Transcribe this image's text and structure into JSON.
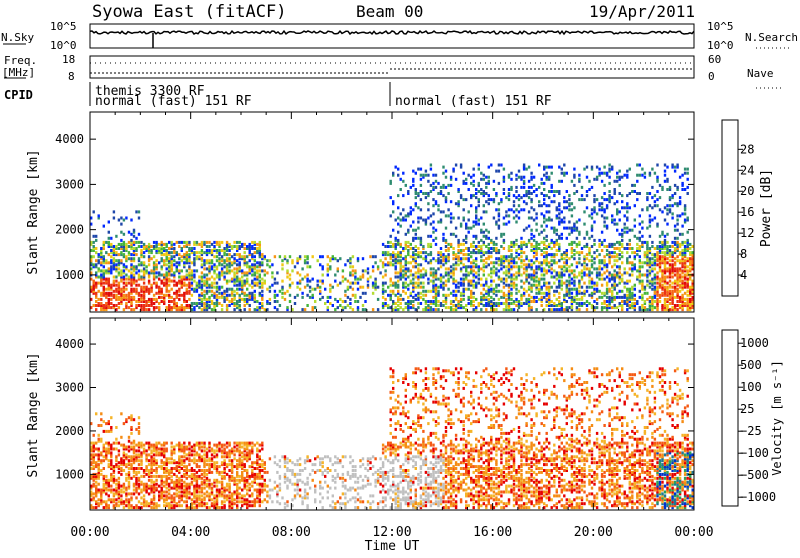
{
  "header": {
    "station": "Syowa East (fitACF)",
    "beam": "Beam 00",
    "date": "19/Apr/2011"
  },
  "summary": {
    "nsky_label": "N.Sky",
    "nsky_top": "10^5",
    "nsky_bottom": "10^0",
    "nsearch_label": "N.Search",
    "nsearch_top": "10^5",
    "nsearch_bottom": "10^0",
    "freq_label_1": "Freq.",
    "freq_label_2": "[MHz]",
    "freq_top": "18",
    "freq_bottom": "8",
    "nave_label": "Nave",
    "nave_top": "60",
    "nave_bottom": "0",
    "cpid_label": "CPID"
  },
  "cpid_entries": [
    {
      "text": "themis 3300 RF"
    },
    {
      "text": "normal (fast) 151 RF"
    },
    {
      "text": "normal (fast) 151 RF"
    }
  ],
  "chart_data": [
    {
      "type": "heatmap",
      "name": "power-panel",
      "ylabel": "Slant Range [km]",
      "xlabel": "Time UT",
      "x_ticks": [
        "00:00",
        "04:00",
        "08:00",
        "12:00",
        "16:00",
        "20:00",
        "00:00"
      ],
      "x_range_hours": [
        0,
        24
      ],
      "y_ticks": [
        1000,
        2000,
        3000,
        4000
      ],
      "ylim": [
        180,
        4600
      ],
      "colorbar": {
        "label": "Power [dB]",
        "ticks": [
          "4",
          "8",
          "12",
          "16",
          "20",
          "24",
          "28"
        ],
        "colors": [
          "#0028ff",
          "#1e46aa",
          "#2f8c70",
          "#46b43c",
          "#b4dc32",
          "#f0c814",
          "#f59614",
          "#f56414",
          "#eb3214",
          "#e10a0a"
        ]
      },
      "echo_regions": [
        {
          "t0": 0.0,
          "t1": 6.5,
          "r0": 300,
          "r1": 1500,
          "level": "mixed"
        },
        {
          "t0": 11.5,
          "t1": 23.8,
          "r0": 1200,
          "r1": 3400,
          "level": "low"
        },
        {
          "t0": 22.5,
          "t1": 24.0,
          "r0": 300,
          "r1": 1600,
          "level": "high"
        }
      ]
    },
    {
      "type": "heatmap",
      "name": "velocity-panel",
      "ylabel": "Slant Range [km]",
      "xlabel": "Time UT",
      "x_ticks": [
        "00:00",
        "04:00",
        "08:00",
        "12:00",
        "16:00",
        "20:00",
        "00:00"
      ],
      "x_range_hours": [
        0,
        24
      ],
      "y_ticks": [
        1000,
        2000,
        3000,
        4000
      ],
      "ylim": [
        180,
        4600
      ],
      "colorbar": {
        "label": "Velocity [m s⁻¹]",
        "ticks": [
          "1000",
          "500",
          "100",
          "25",
          "−25",
          "−100",
          "−500",
          "−1000"
        ],
        "colors": [
          "#0033cc",
          "#1e7896",
          "#2ca05a",
          "#5ac83c",
          "#c0c0c0",
          "#c0c0c0",
          "#f5b428",
          "#f58c14",
          "#f55a14",
          "#e60000"
        ]
      },
      "ground_scatter_color": "#c0c0c0"
    }
  ]
}
